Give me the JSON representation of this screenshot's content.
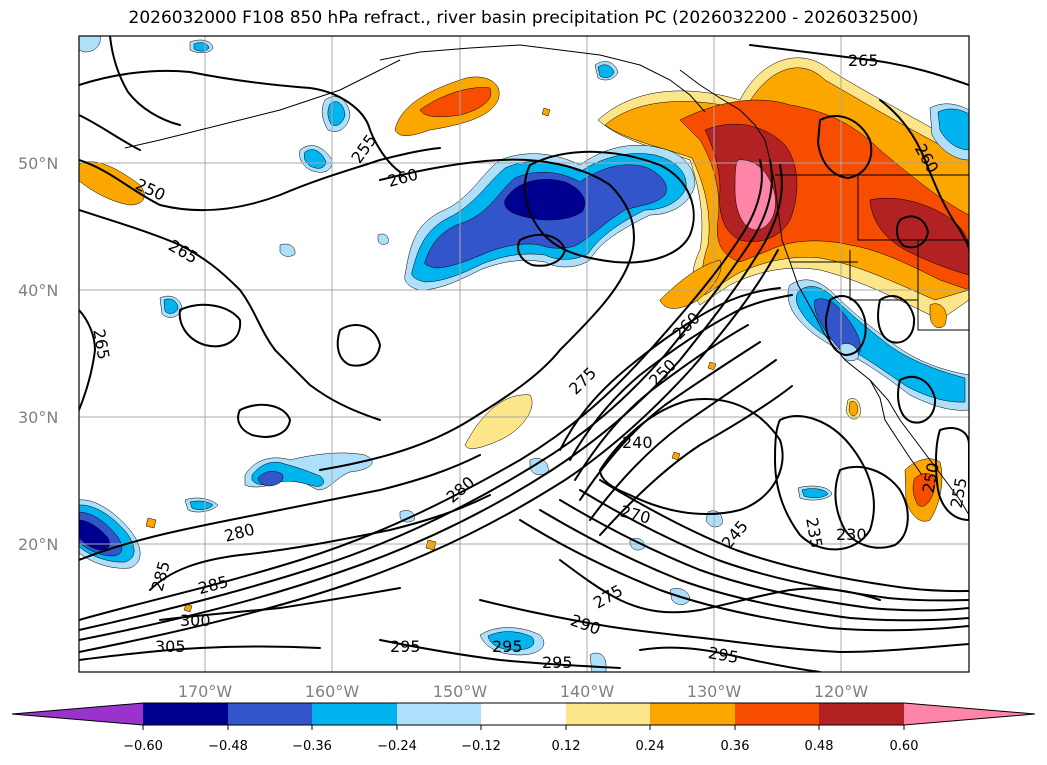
{
  "title": "2026032000 F108 850 hPa refract., river basin precipitation PC (2026032200 - 2026032500)",
  "lat_labels": [
    "50°N",
    "40°N",
    "30°N",
    "20°N"
  ],
  "lon_labels": [
    "170°W",
    "160°W",
    "150°W",
    "140°W",
    "130°W",
    "120°W"
  ],
  "colorbar": {
    "ticks": [
      "−0.60",
      "−0.48",
      "−0.36",
      "−0.24",
      "−0.12",
      "0.12",
      "0.24",
      "0.36",
      "0.48",
      "0.60"
    ],
    "colors": [
      "#9933cc",
      "#000090",
      "#3355cc",
      "#00b4f0",
      "#aee0fb",
      "#ffffff",
      "#fde68a",
      "#fca600",
      "#f74d00",
      "#b22222",
      "#ff85a8"
    ]
  },
  "shading_colors": {
    "pos1": "#fde68a",
    "pos2": "#fca600",
    "pos3": "#f74d00",
    "pos4": "#b22222",
    "pos5": "#ff85a8",
    "neg1": "#aee0fb",
    "neg2": "#00b4f0",
    "neg3": "#3355cc",
    "neg4": "#000090"
  },
  "contour_labels": [
    "265",
    "255",
    "250",
    "260",
    "265",
    "265",
    "260",
    "275",
    "250",
    "260",
    "240",
    "280",
    "280",
    "270",
    "245",
    "235",
    "230",
    "285",
    "285",
    "275",
    "300",
    "290",
    "305",
    "295",
    "295",
    "295",
    "295",
    "250",
    "255"
  ]
}
